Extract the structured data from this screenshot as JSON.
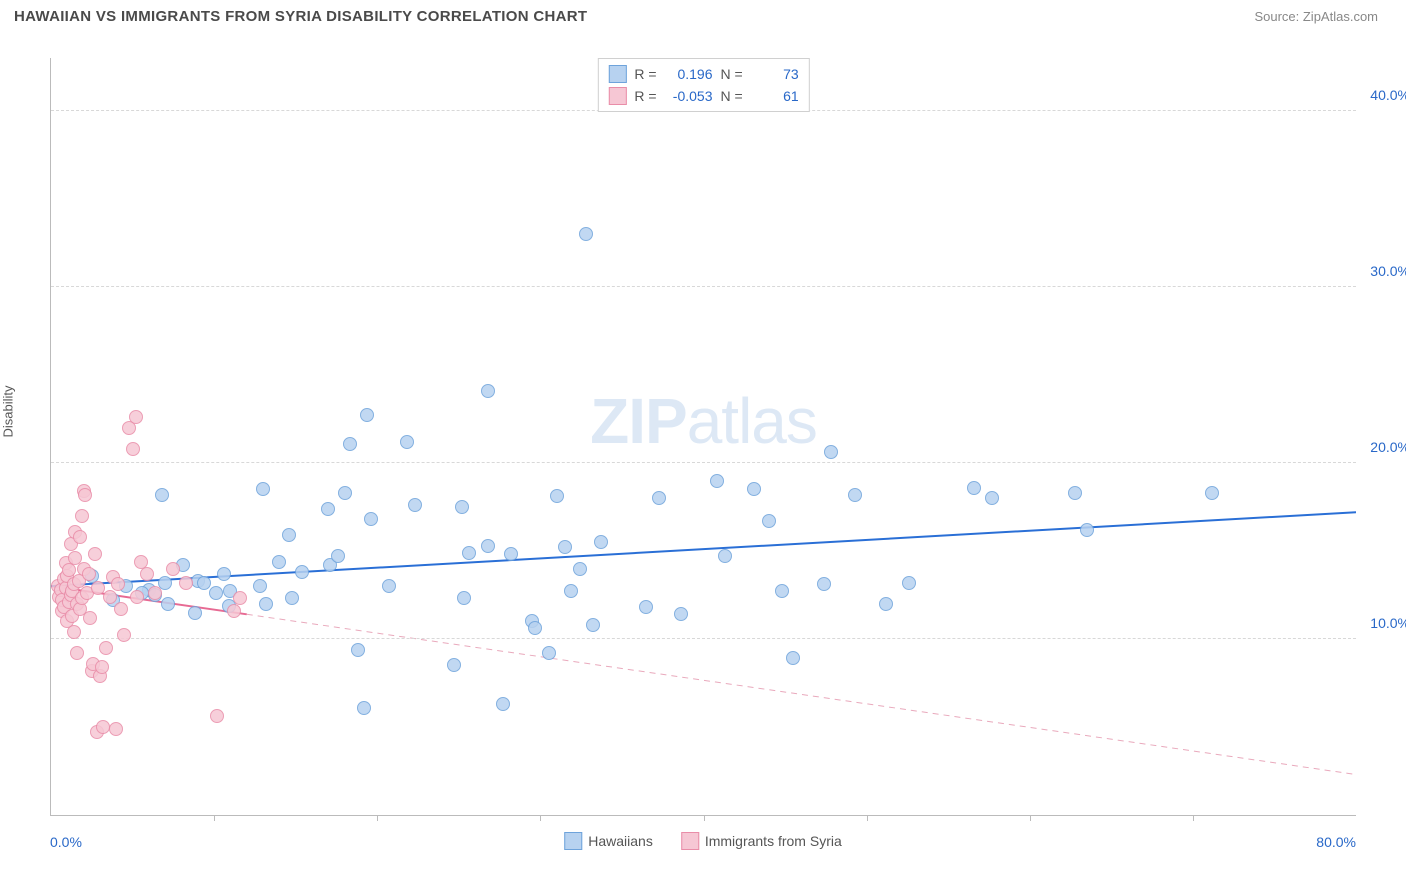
{
  "title": "HAWAIIAN VS IMMIGRANTS FROM SYRIA DISABILITY CORRELATION CHART",
  "source": "Source: ZipAtlas.com",
  "watermark": {
    "zip": "ZIP",
    "atlas": "atlas"
  },
  "chart": {
    "type": "scatter",
    "ylabel": "Disability",
    "xlim": [
      0,
      80
    ],
    "ylim": [
      0,
      43
    ],
    "xmin_label": "0.0%",
    "xmax_label": "80.0%",
    "yticks": [
      10,
      20,
      30,
      40
    ],
    "ytick_labels": [
      "10.0%",
      "20.0%",
      "30.0%",
      "40.0%"
    ],
    "xticks": [
      10,
      20,
      30,
      40,
      50,
      60,
      70
    ],
    "grid_color": "#d8d8d8",
    "axis_color": "#bbbbbb",
    "tick_label_color": "#2968c8",
    "background_color": "#ffffff",
    "point_radius": 7,
    "series": [
      {
        "name": "Hawaiians",
        "color_fill": "#b7d2f0",
        "color_stroke": "#6ea3db",
        "R": "0.196",
        "N": "73",
        "trend": {
          "x1": 0,
          "y1": 13.0,
          "x2": 80,
          "y2": 17.2,
          "color": "#2a6fd6",
          "width": 2,
          "dash": "none"
        },
        "points": [
          [
            6.0,
            12.8
          ],
          [
            6.4,
            12.5
          ],
          [
            3.8,
            12.2
          ],
          [
            2.5,
            13.6
          ],
          [
            4.6,
            13.0
          ],
          [
            5.6,
            12.6
          ],
          [
            6.8,
            18.2
          ],
          [
            7.0,
            13.2
          ],
          [
            7.2,
            12.0
          ],
          [
            8.1,
            14.2
          ],
          [
            8.8,
            11.5
          ],
          [
            9.0,
            13.3
          ],
          [
            9.4,
            13.2
          ],
          [
            10.1,
            12.6
          ],
          [
            10.6,
            13.7
          ],
          [
            10.9,
            11.9
          ],
          [
            11.0,
            12.7
          ],
          [
            12.8,
            13.0
          ],
          [
            13.0,
            18.5
          ],
          [
            13.2,
            12.0
          ],
          [
            14.0,
            14.4
          ],
          [
            14.6,
            15.9
          ],
          [
            14.8,
            12.3
          ],
          [
            15.4,
            13.8
          ],
          [
            17.0,
            17.4
          ],
          [
            17.1,
            14.2
          ],
          [
            17.6,
            14.7
          ],
          [
            18.0,
            18.3
          ],
          [
            18.3,
            21.1
          ],
          [
            18.8,
            9.4
          ],
          [
            19.2,
            6.1
          ],
          [
            19.4,
            22.7
          ],
          [
            19.6,
            16.8
          ],
          [
            20.7,
            13.0
          ],
          [
            21.8,
            21.2
          ],
          [
            22.3,
            17.6
          ],
          [
            24.7,
            8.5
          ],
          [
            25.2,
            17.5
          ],
          [
            25.3,
            12.3
          ],
          [
            25.6,
            14.9
          ],
          [
            26.8,
            24.1
          ],
          [
            26.8,
            15.3
          ],
          [
            27.7,
            6.3
          ],
          [
            28.2,
            14.8
          ],
          [
            29.5,
            11.0
          ],
          [
            29.7,
            10.6
          ],
          [
            30.5,
            9.2
          ],
          [
            31.0,
            18.1
          ],
          [
            31.5,
            15.2
          ],
          [
            31.9,
            12.7
          ],
          [
            32.4,
            14.0
          ],
          [
            32.8,
            33.0
          ],
          [
            33.2,
            10.8
          ],
          [
            33.7,
            15.5
          ],
          [
            36.5,
            11.8
          ],
          [
            37.3,
            18.0
          ],
          [
            38.6,
            11.4
          ],
          [
            40.8,
            19.0
          ],
          [
            41.3,
            14.7
          ],
          [
            43.1,
            18.5
          ],
          [
            44.0,
            16.7
          ],
          [
            44.8,
            12.7
          ],
          [
            45.5,
            8.9
          ],
          [
            47.4,
            13.1
          ],
          [
            47.8,
            20.6
          ],
          [
            49.3,
            18.2
          ],
          [
            51.2,
            12.0
          ],
          [
            52.6,
            13.2
          ],
          [
            56.6,
            18.6
          ],
          [
            57.7,
            18.0
          ],
          [
            62.8,
            18.3
          ],
          [
            63.5,
            16.2
          ],
          [
            71.2,
            18.3
          ]
        ]
      },
      {
        "name": "Immigrants from Syria",
        "color_fill": "#f6c7d4",
        "color_stroke": "#e98da8",
        "R": "-0.053",
        "N": "61",
        "trend_solid": {
          "x1": 0,
          "y1": 13.0,
          "x2": 12,
          "y2": 11.4,
          "color": "#e76a93",
          "width": 2
        },
        "trend_dashed": {
          "x1": 12,
          "y1": 11.4,
          "x2": 80,
          "y2": 2.3,
          "color": "#e9a9bc",
          "width": 1,
          "dash": "6,5"
        },
        "points": [
          [
            0.4,
            13.0
          ],
          [
            0.5,
            12.4
          ],
          [
            0.6,
            12.8
          ],
          [
            0.7,
            11.6
          ],
          [
            0.7,
            12.2
          ],
          [
            0.8,
            13.4
          ],
          [
            0.8,
            11.8
          ],
          [
            0.9,
            12.9
          ],
          [
            0.9,
            14.3
          ],
          [
            1.0,
            11.0
          ],
          [
            1.0,
            13.6
          ],
          [
            1.1,
            12.1
          ],
          [
            1.1,
            13.9
          ],
          [
            1.2,
            12.5
          ],
          [
            1.2,
            15.4
          ],
          [
            1.3,
            11.3
          ],
          [
            1.3,
            12.7
          ],
          [
            1.4,
            10.4
          ],
          [
            1.4,
            13.1
          ],
          [
            1.5,
            14.6
          ],
          [
            1.5,
            16.1
          ],
          [
            1.6,
            12.0
          ],
          [
            1.6,
            9.2
          ],
          [
            1.7,
            13.3
          ],
          [
            1.8,
            11.7
          ],
          [
            1.8,
            15.8
          ],
          [
            1.9,
            17.0
          ],
          [
            1.9,
            12.3
          ],
          [
            2.0,
            14.0
          ],
          [
            2.0,
            18.4
          ],
          [
            2.1,
            18.2
          ],
          [
            2.2,
            12.6
          ],
          [
            2.3,
            13.7
          ],
          [
            2.4,
            11.2
          ],
          [
            2.5,
            8.2
          ],
          [
            2.6,
            8.6
          ],
          [
            2.7,
            14.8
          ],
          [
            2.8,
            4.7
          ],
          [
            2.9,
            12.9
          ],
          [
            3.0,
            7.9
          ],
          [
            3.1,
            8.4
          ],
          [
            3.2,
            5.0
          ],
          [
            3.4,
            9.5
          ],
          [
            3.6,
            12.4
          ],
          [
            3.8,
            13.5
          ],
          [
            4.0,
            4.9
          ],
          [
            4.1,
            13.1
          ],
          [
            4.3,
            11.7
          ],
          [
            4.5,
            10.2
          ],
          [
            4.8,
            22.0
          ],
          [
            5.0,
            20.8
          ],
          [
            5.2,
            22.6
          ],
          [
            5.3,
            12.4
          ],
          [
            5.5,
            14.4
          ],
          [
            5.9,
            13.7
          ],
          [
            6.4,
            12.6
          ],
          [
            7.5,
            14.0
          ],
          [
            8.3,
            13.2
          ],
          [
            10.2,
            5.6
          ],
          [
            11.2,
            11.6
          ],
          [
            11.6,
            12.3
          ]
        ]
      }
    ]
  },
  "legend_top": [
    {
      "swatch_fill": "#b7d2f0",
      "swatch_stroke": "#6ea3db",
      "R_label": "R =",
      "R": "0.196",
      "N_label": "N =",
      "N": "73"
    },
    {
      "swatch_fill": "#f6c7d4",
      "swatch_stroke": "#e98da8",
      "R_label": "R =",
      "R": "-0.053",
      "N_label": "N =",
      "N": "61"
    }
  ],
  "legend_bottom": [
    {
      "swatch_fill": "#b7d2f0",
      "swatch_stroke": "#6ea3db",
      "label": "Hawaiians"
    },
    {
      "swatch_fill": "#f6c7d4",
      "swatch_stroke": "#e98da8",
      "label": "Immigrants from Syria"
    }
  ]
}
